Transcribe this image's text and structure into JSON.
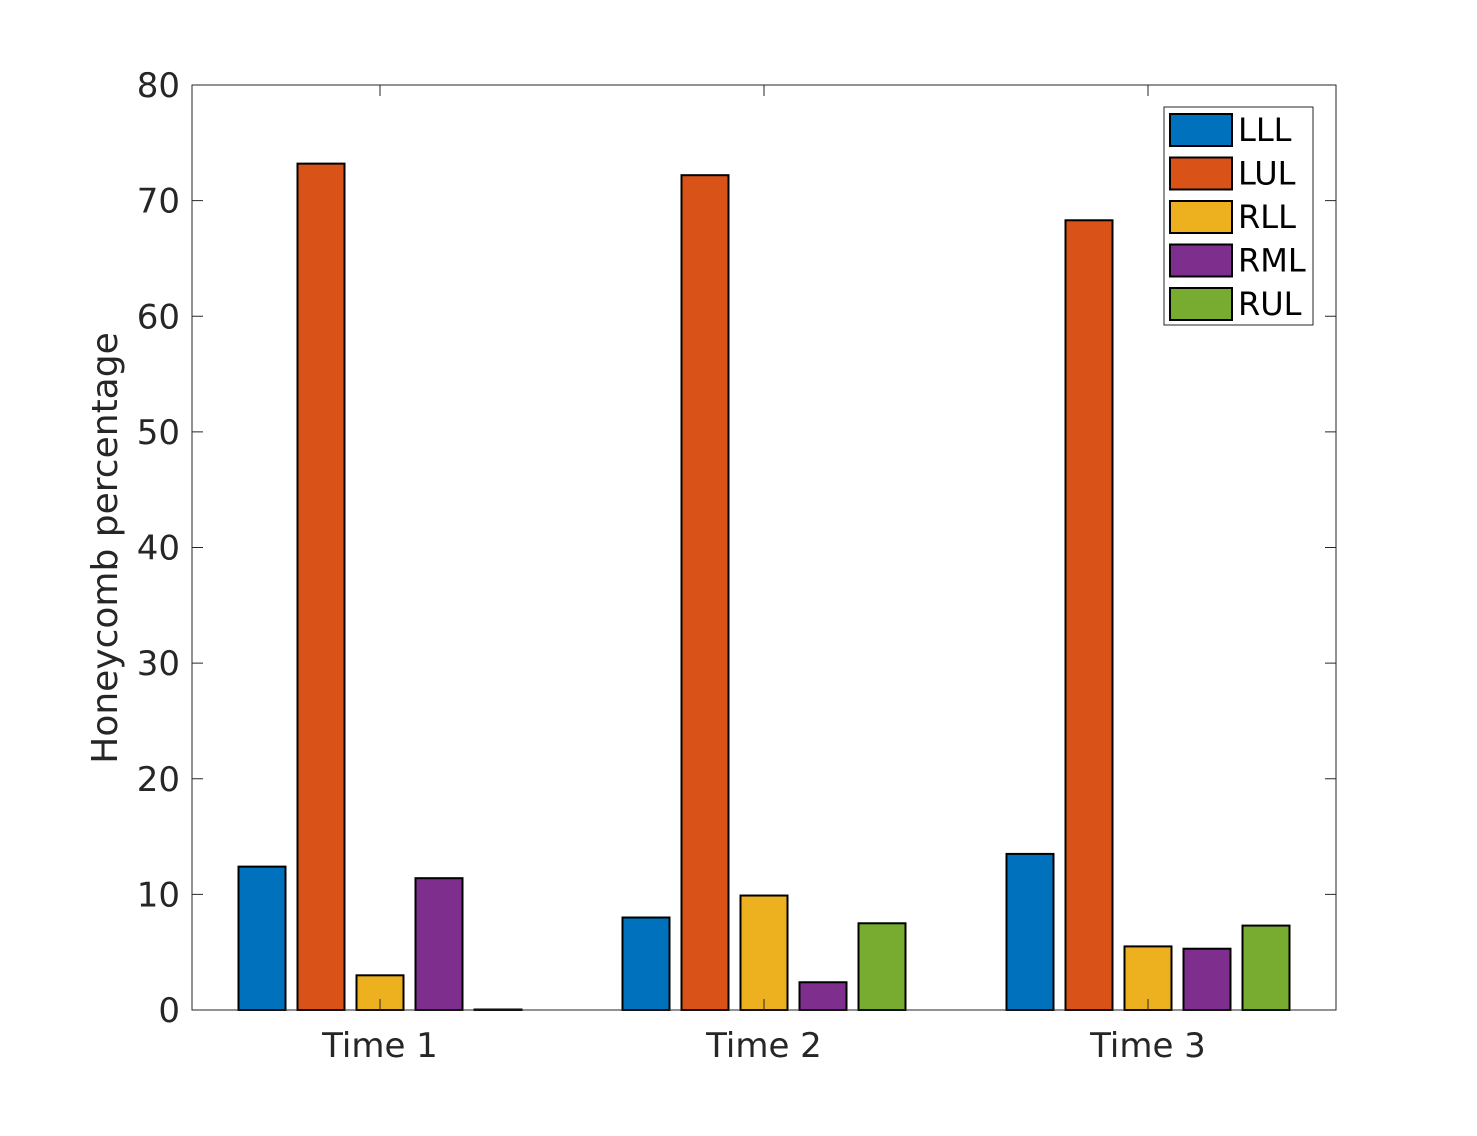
{
  "chart_data": {
    "type": "bar",
    "categories": [
      "Time 1",
      "Time 2",
      "Time 3"
    ],
    "series": [
      {
        "name": "LLL",
        "color": "#0072BD",
        "values": [
          12.4,
          8.0,
          13.5
        ]
      },
      {
        "name": "LUL",
        "color": "#D95319",
        "values": [
          73.2,
          72.2,
          68.3
        ]
      },
      {
        "name": "RLL",
        "color": "#EDB120",
        "values": [
          3.0,
          9.9,
          5.5
        ]
      },
      {
        "name": "RML",
        "color": "#7E2F8E",
        "values": [
          11.4,
          2.4,
          5.3
        ]
      },
      {
        "name": "RUL",
        "color": "#77AC30",
        "values": [
          0.0,
          7.5,
          7.3
        ]
      }
    ],
    "xlabel": "",
    "ylabel": "Honeycomb percentage",
    "ylim": [
      0,
      80
    ],
    "yticks": [
      0,
      10,
      20,
      30,
      40,
      50,
      60,
      70,
      80
    ],
    "grid": false,
    "legend": {
      "position": "top-right"
    }
  }
}
